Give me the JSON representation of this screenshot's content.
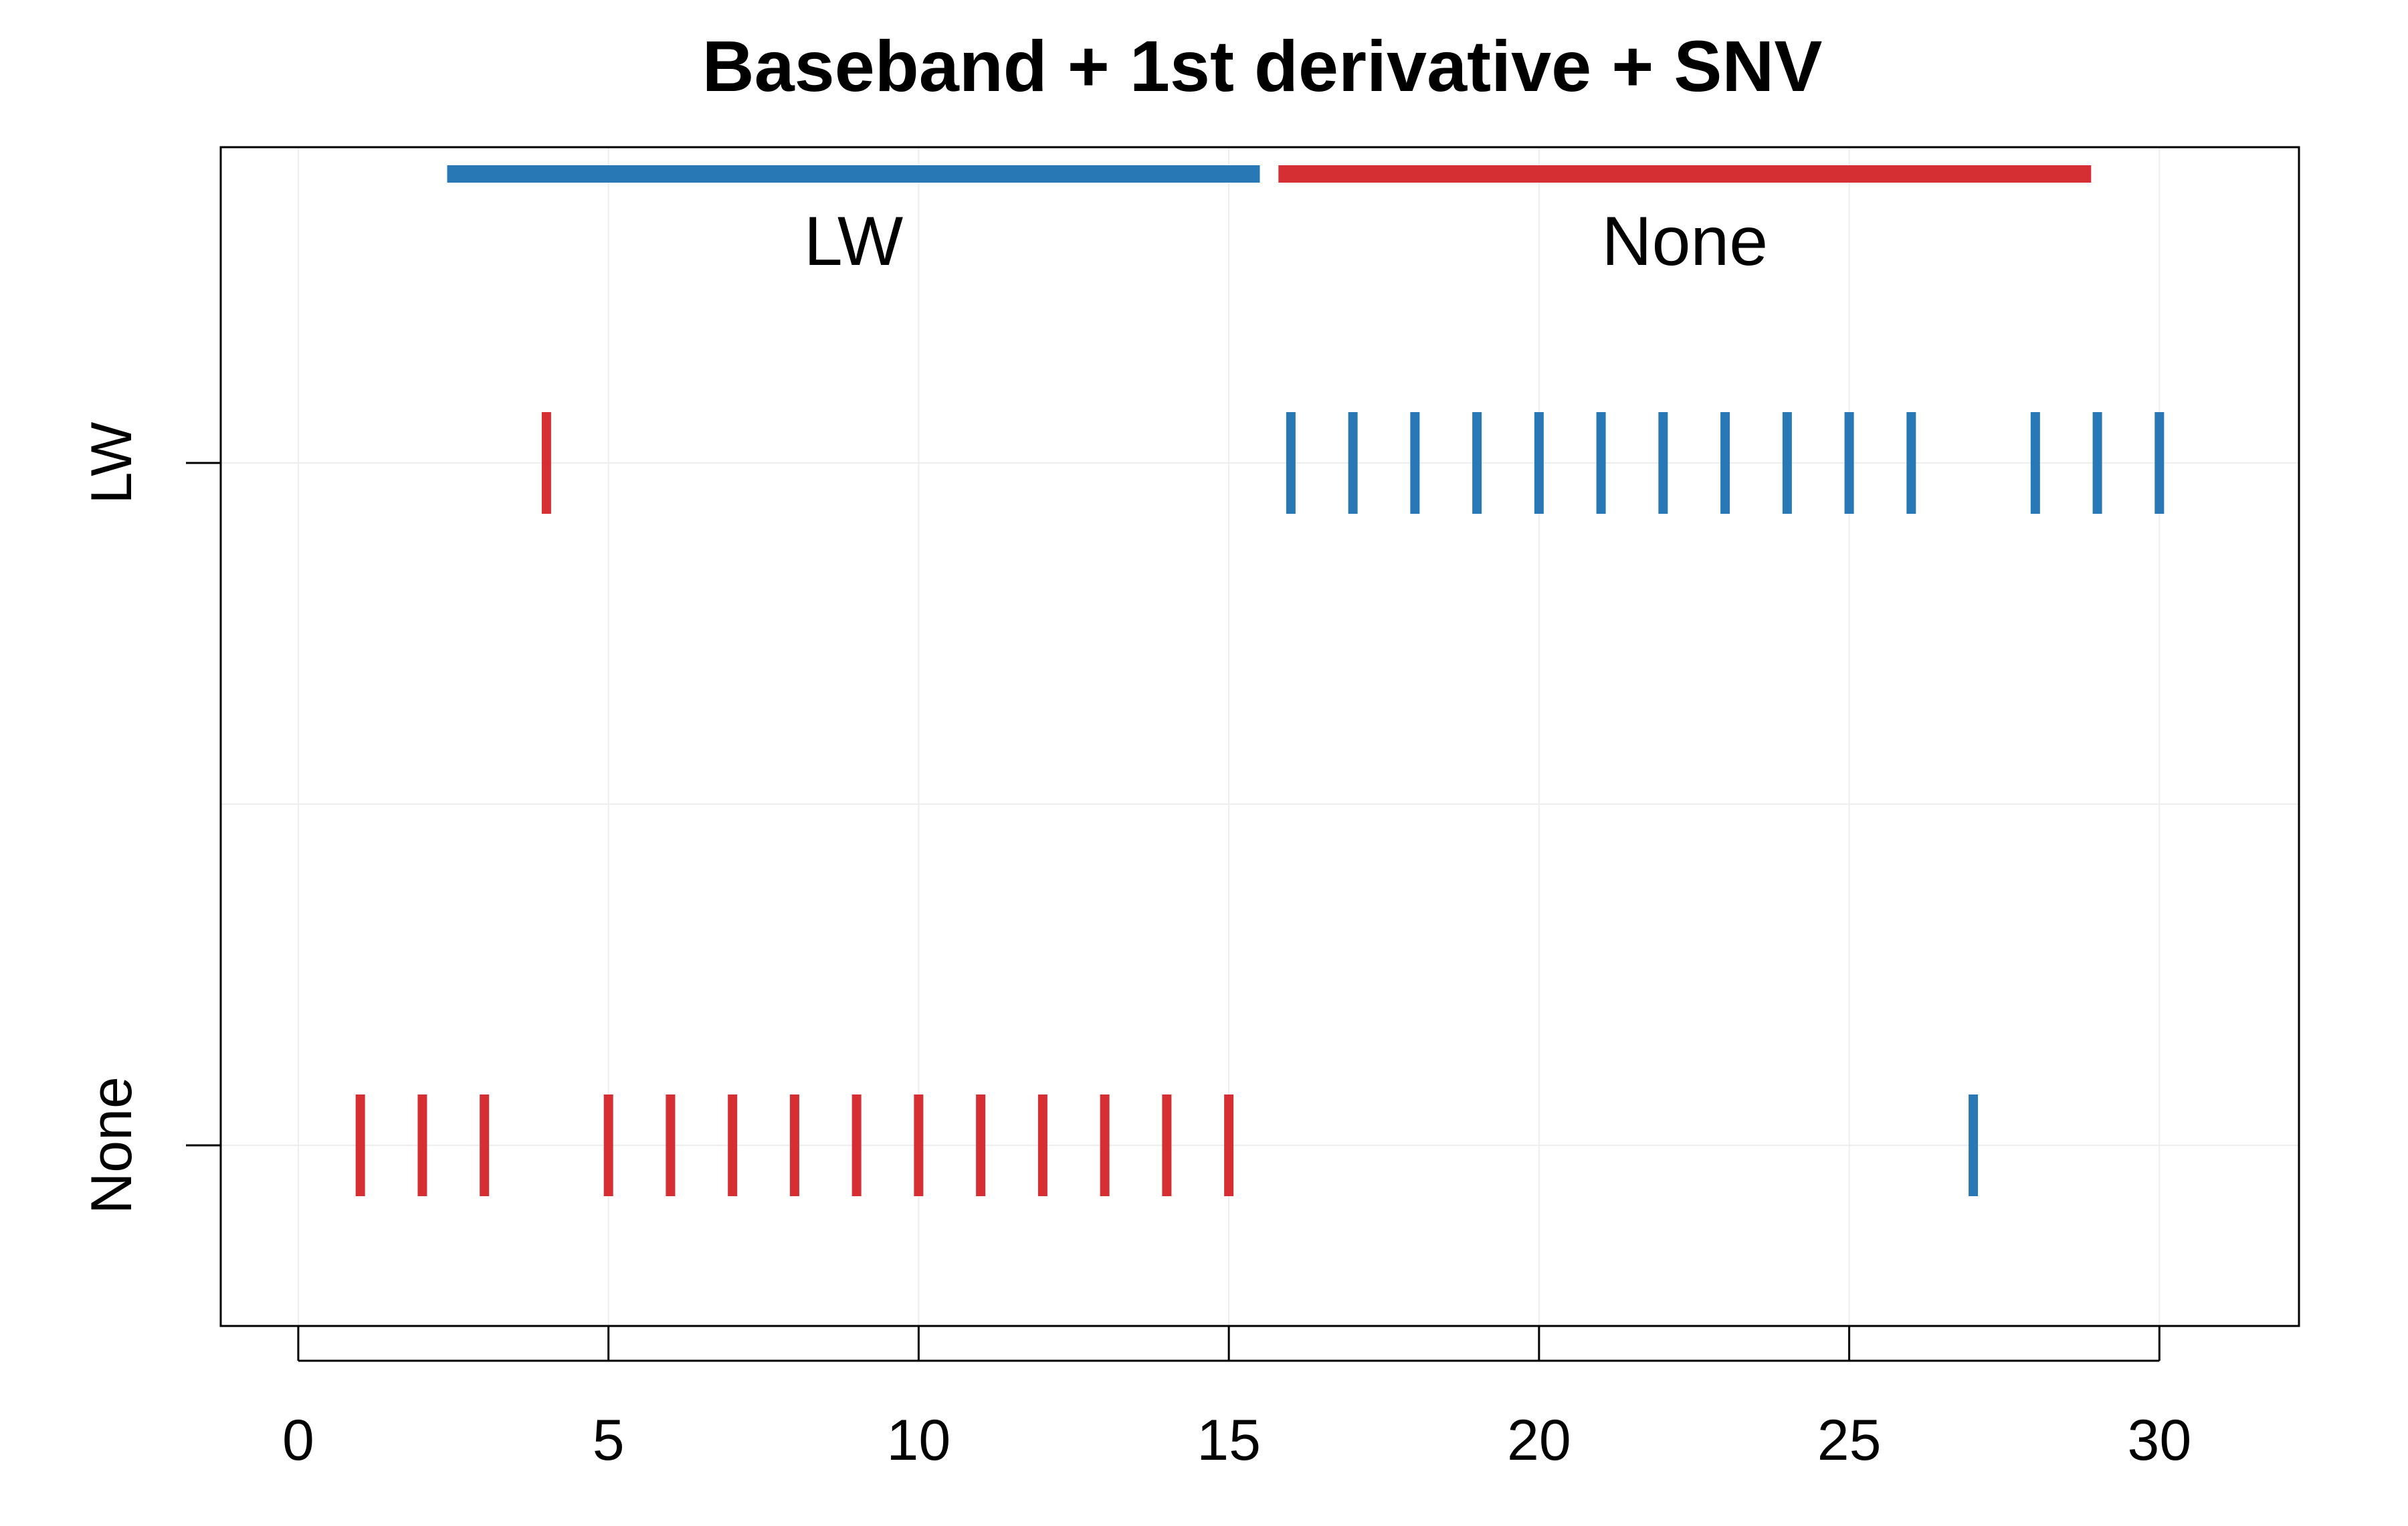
{
  "chart_data": {
    "type": "strip",
    "title": "Baseband + 1st derivative + SNV",
    "xlabel": "",
    "ylabel": "",
    "xlim": [
      -1.25,
      32.25
    ],
    "x_ticks": [
      0,
      5,
      10,
      15,
      20,
      25,
      30
    ],
    "categories": [
      "None",
      "LW"
    ],
    "grid": true,
    "colors": {
      "LW": "#2878b5",
      "None": "#d62f33"
    },
    "groups": [
      {
        "label": "LW",
        "x_start": 2.4,
        "x_end": 15.5,
        "color": "#2878b5"
      },
      {
        "label": "None",
        "x_start": 15.8,
        "x_end": 28.9,
        "color": "#d62f33"
      }
    ],
    "series": [
      {
        "row": "LW",
        "color": "#d62f33",
        "x": [
          4
        ]
      },
      {
        "row": "LW",
        "color": "#2878b5",
        "x": [
          16,
          17,
          18,
          19,
          20,
          21,
          22,
          23,
          24,
          25,
          26,
          28,
          29,
          30
        ]
      },
      {
        "row": "None",
        "color": "#d62f33",
        "x": [
          1,
          2,
          3,
          5,
          6,
          7,
          8,
          9,
          10,
          11,
          12,
          13,
          14,
          15
        ]
      },
      {
        "row": "None",
        "color": "#2878b5",
        "x": [
          27
        ]
      }
    ]
  }
}
